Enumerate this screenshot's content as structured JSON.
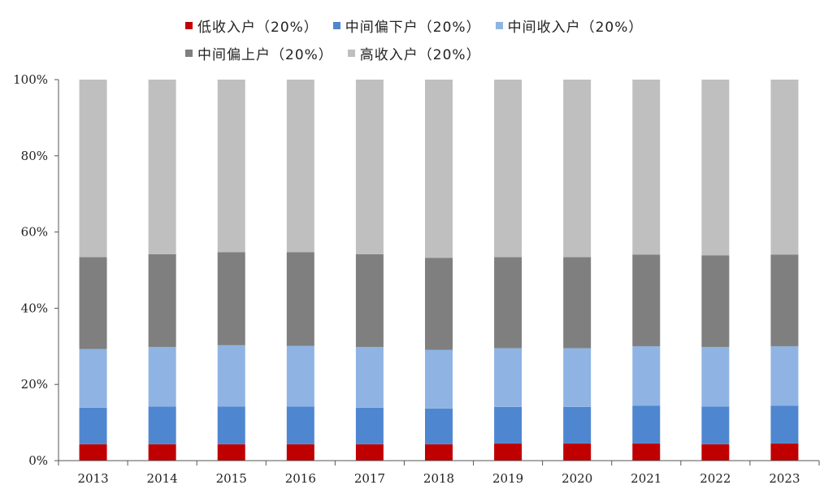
{
  "chart_data": {
    "type": "bar",
    "stacked": true,
    "categories": [
      "2013",
      "2014",
      "2015",
      "2016",
      "2017",
      "2018",
      "2019",
      "2020",
      "2021",
      "2022",
      "2023"
    ],
    "series": [
      {
        "name": "低收入户（20%）",
        "color": "#c00000",
        "values": [
          4.3,
          4.3,
          4.3,
          4.3,
          4.3,
          4.3,
          4.5,
          4.5,
          4.5,
          4.3,
          4.5
        ]
      },
      {
        "name": "中间偏下户（20%）",
        "color": "#4f86d0",
        "values": [
          9.6,
          9.9,
          9.9,
          9.9,
          9.6,
          9.4,
          9.6,
          9.6,
          9.9,
          9.9,
          9.9
        ]
      },
      {
        "name": "中间收入户（20%）",
        "color": "#8fb4e3",
        "values": [
          15.4,
          15.6,
          16.1,
          15.9,
          15.9,
          15.4,
          15.4,
          15.4,
          15.6,
          15.6,
          15.6
        ]
      },
      {
        "name": "中间偏上户（20%）",
        "color": "#7f7f7f",
        "values": [
          24.1,
          24.4,
          24.4,
          24.6,
          24.4,
          24.1,
          23.9,
          23.9,
          24.1,
          24.1,
          24.1
        ]
      },
      {
        "name": "高收入户（20%）",
        "color": "#bfbfbf",
        "values": [
          46.6,
          45.8,
          45.3,
          45.3,
          45.8,
          46.8,
          46.6,
          46.6,
          45.9,
          46.1,
          45.9
        ]
      }
    ],
    "ylim": [
      0,
      100
    ],
    "yticks": [
      "0%",
      "20%",
      "40%",
      "60%",
      "80%",
      "100%"
    ],
    "legend_position": "top",
    "grid": false
  }
}
